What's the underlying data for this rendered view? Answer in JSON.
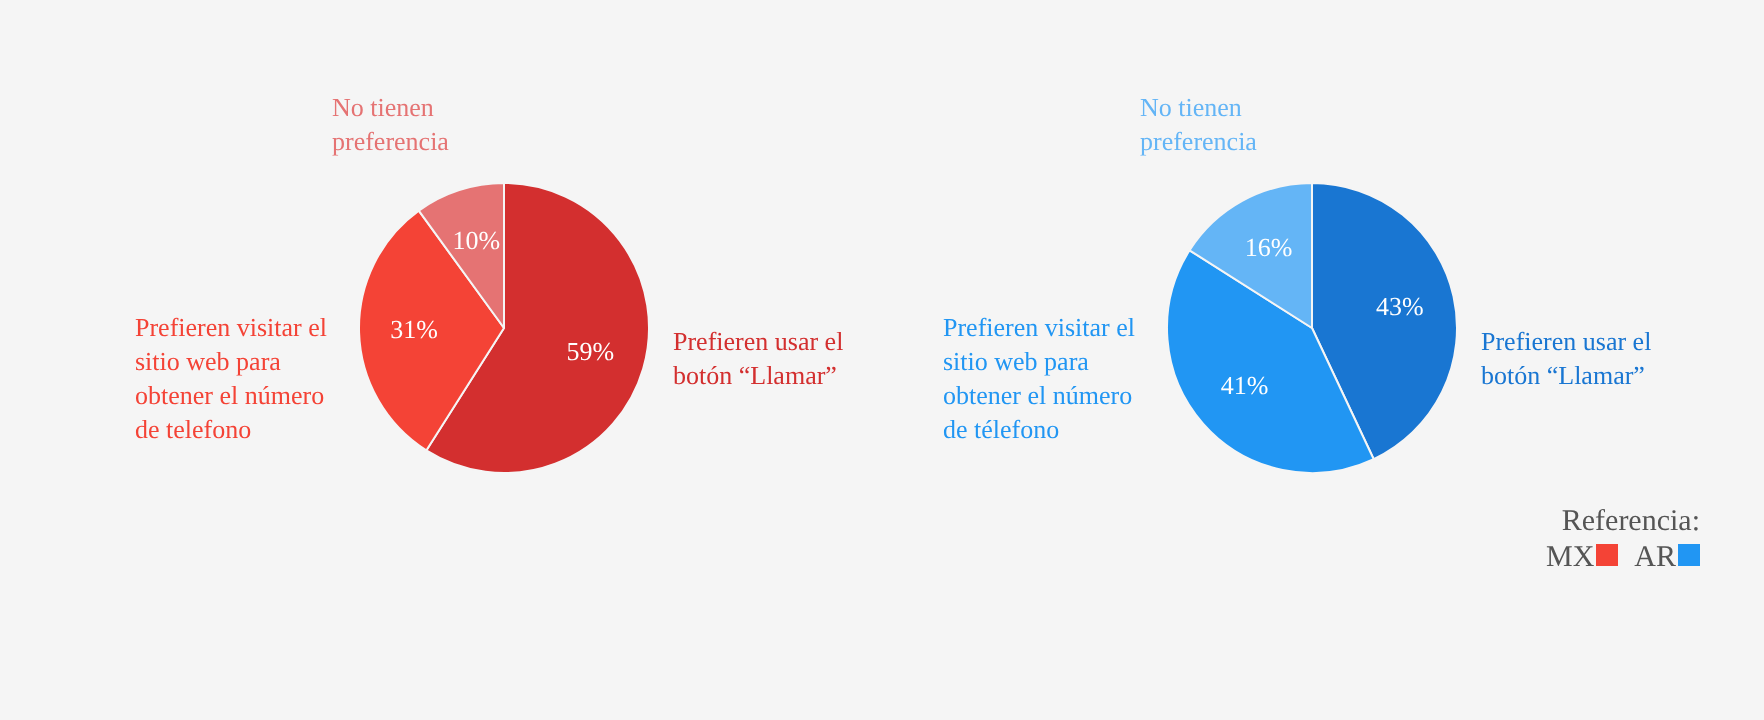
{
  "chart_data": [
    {
      "type": "pie",
      "categories": [
        "Prefieren usar el botón “Llamar”",
        "Prefieren visitar el sitio web para obtener el número de telefono",
        "No tienen preferencia"
      ],
      "values": [
        59,
        31,
        10
      ],
      "value_labels": [
        "59%",
        "31%",
        "10%"
      ],
      "colors": [
        "#d32f2f",
        "#f44336",
        "#e57373"
      ],
      "legend": false
    },
    {
      "type": "pie",
      "categories": [
        "Prefieren usar el botón “Llamar”",
        "Prefieren visitar el sitio web para obtener el número de télefono",
        "No tienen preferencia"
      ],
      "values": [
        43,
        41,
        16
      ],
      "value_labels": [
        "43%",
        "41%",
        "16%"
      ],
      "colors": [
        "#1976d2",
        "#2196f3",
        "#64b5f6"
      ],
      "legend": false
    },
    {
      "type": "other",
      "legend_title": "Referencia:",
      "categories": [
        "MX",
        "AR"
      ],
      "colors": [
        "#f44336",
        "#2196f3"
      ]
    }
  ]
}
